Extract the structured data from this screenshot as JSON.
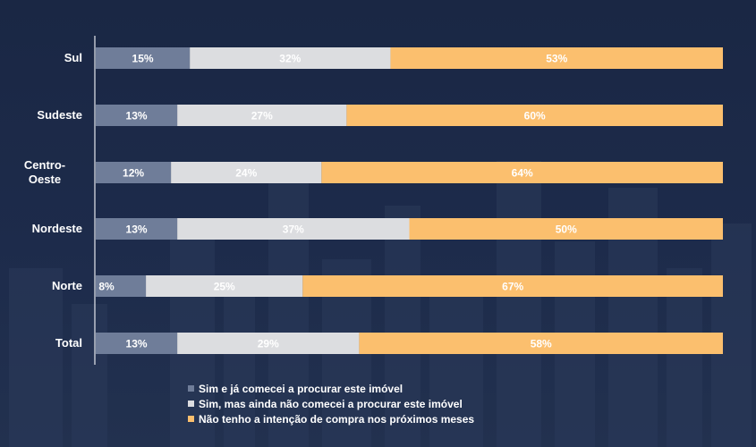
{
  "chart_data": {
    "type": "bar",
    "orientation": "horizontal",
    "stacked": true,
    "categories": [
      "Sul",
      "Sudeste",
      "Centro-Oeste",
      "Nordeste",
      "Norte",
      "Total"
    ],
    "category_display": [
      [
        "Sul"
      ],
      [
        "Sudeste"
      ],
      [
        "Centro-",
        "Oeste"
      ],
      [
        "Nordeste"
      ],
      [
        "Norte"
      ],
      [
        "Total"
      ]
    ],
    "series": [
      {
        "name": "Sim e já comecei a procurar este imóvel",
        "values": [
          15,
          13,
          12,
          13,
          8,
          13
        ],
        "labels": [
          "15%",
          "13%",
          "12%",
          "13%",
          "8%",
          "13%"
        ],
        "color": "#6f7d99",
        "label_color": "#ffffff"
      },
      {
        "name": "Sim, mas ainda não comecei a procurar este imóvel",
        "values": [
          32,
          27,
          24,
          37,
          25,
          29
        ],
        "labels": [
          "32%",
          "27%",
          "24%",
          "37%",
          "25%",
          "29%"
        ],
        "color": "#dcdde0",
        "label_color": "#ffffff"
      },
      {
        "name": "Não tenho a intenção de compra nos próximos meses",
        "values": [
          53,
          60,
          64,
          50,
          67,
          58
        ],
        "labels": [
          "53%",
          "60%",
          "64%",
          "50%",
          "67%",
          "58%"
        ],
        "color": "#fbbf6e",
        "label_color": "#ffffff"
      }
    ],
    "xlim": [
      0,
      100
    ],
    "legend": "bottom-center"
  }
}
